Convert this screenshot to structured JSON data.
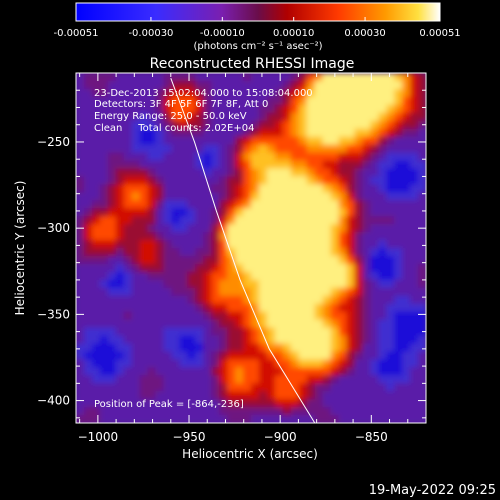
{
  "colorbar": {
    "tick_labels": [
      "-0.00051",
      "-0.00030",
      "-0.00010",
      "0.00010",
      "0.00030",
      "0.00051"
    ],
    "tick_values": [
      -0.00051,
      -0.0003,
      -0.0001,
      0.0001,
      0.0003,
      0.00051
    ],
    "unit_label": "(photons cm⁻² s⁻¹ asec⁻²)",
    "range": [
      -0.00051,
      0.00051
    ]
  },
  "chart_data": {
    "type": "heatmap",
    "title": "Reconstructed RHESSI Image",
    "xlabel": "Heliocentric X (arcsec)",
    "ylabel": "Heliocentric Y (arcsec)",
    "xlim": [
      -1012,
      -820
    ],
    "ylim": [
      -413,
      -210
    ],
    "x_ticks": [
      -1000,
      -950,
      -900,
      -850
    ],
    "x_tick_labels": [
      "−1000",
      "−950",
      "−900",
      "−850"
    ],
    "y_ticks": [
      -250,
      -300,
      -350,
      -400
    ],
    "y_tick_labels": [
      "−250",
      "−300",
      "−350",
      "−400"
    ],
    "limb_curve": [
      [
        -960,
        -213
      ],
      [
        -947,
        -250
      ],
      [
        -935,
        -290
      ],
      [
        -922,
        -330
      ],
      [
        -906,
        -370
      ],
      [
        -881,
        -413
      ]
    ],
    "peak": [
      -864,
      -236
    ],
    "annotations": {
      "time": "23-Dec-2013 15:02:04.000 to 15:08:04.000",
      "detectors": "Detectors: 3F 4F 5F 6F 7F 8F, Att 0",
      "energy": "Energy Range: 25.0 - 50.0 keV",
      "clean": "Clean     Total counts: 2.02E+04",
      "peak_label": "Position of Peak = [-864,-236]"
    }
  },
  "footer": {
    "date": "19-May-2022 09:25"
  }
}
